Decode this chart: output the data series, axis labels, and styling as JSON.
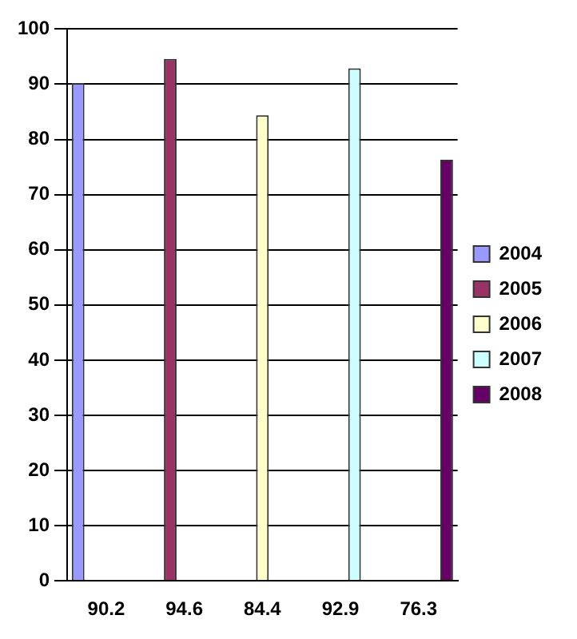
{
  "chart_data": {
    "type": "bar",
    "categories": [
      "90.2",
      "94.6",
      "84.4",
      "92.9",
      "76.3"
    ],
    "series": [
      {
        "name": "2004",
        "color": "#9999ff",
        "values": [
          90.2,
          null,
          null,
          null,
          null
        ]
      },
      {
        "name": "2005",
        "color": "#993366",
        "values": [
          null,
          94.6,
          null,
          null,
          null
        ]
      },
      {
        "name": "2006",
        "color": "#ffffcc",
        "values": [
          null,
          null,
          84.4,
          null,
          null
        ]
      },
      {
        "name": "2007",
        "color": "#ccffff",
        "values": [
          null,
          null,
          null,
          92.9,
          null
        ]
      },
      {
        "name": "2008",
        "color": "#660066",
        "values": [
          null,
          null,
          null,
          null,
          76.3
        ]
      }
    ],
    "ylim": [
      0,
      100
    ],
    "yticks": [
      0,
      10,
      20,
      30,
      40,
      50,
      60,
      70,
      80,
      90,
      100
    ],
    "grid": "y",
    "legend": "right"
  }
}
